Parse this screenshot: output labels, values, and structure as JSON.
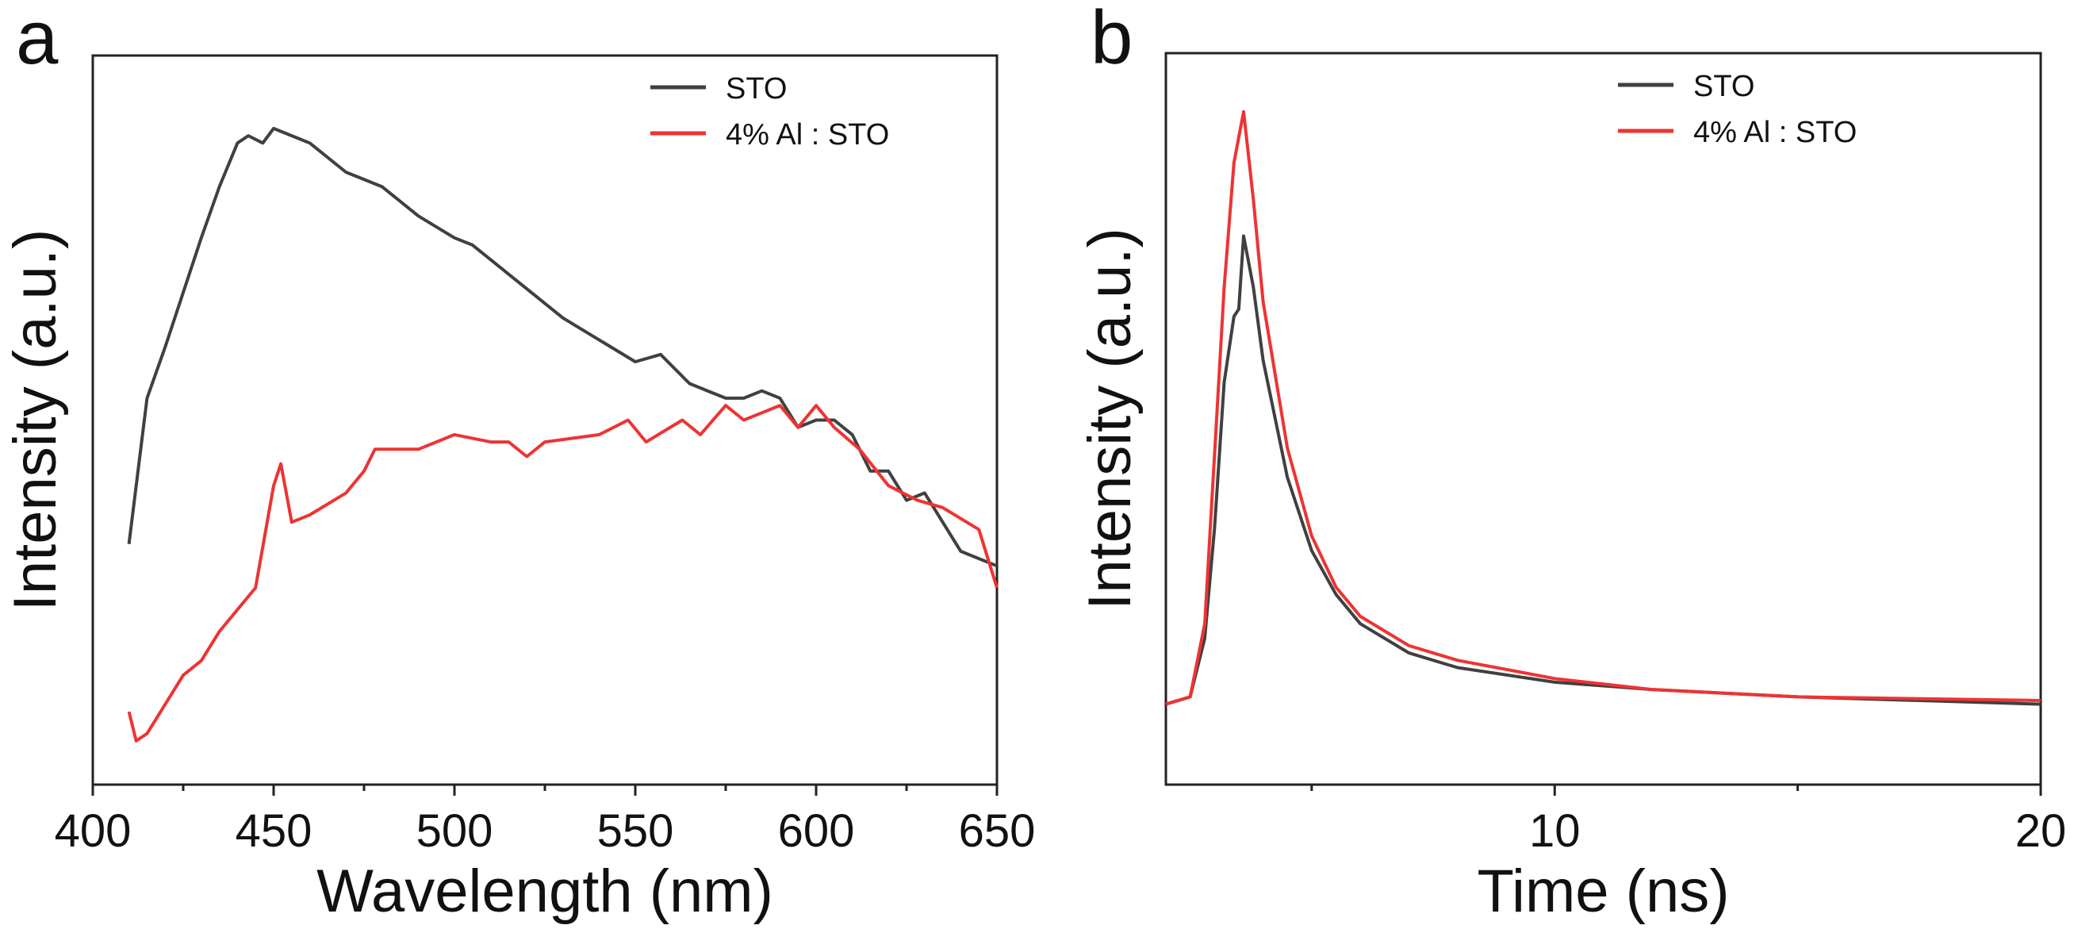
{
  "chart_data": [
    {
      "panel_label": "a",
      "type": "line",
      "xlabel": "Wavelength (nm)",
      "ylabel": "Intensity (a.u.)",
      "xlim": [
        400,
        650
      ],
      "ylim": [
        0,
        1
      ],
      "xticks": [
        400,
        450,
        500,
        550,
        600,
        650
      ],
      "xminor": [
        425,
        475,
        525,
        575,
        625
      ],
      "yticks_shown": false,
      "grid": false,
      "legend": "top-right",
      "series": [
        {
          "name": "STO",
          "color": "#404040",
          "x": [
            410,
            415,
            420,
            430,
            435,
            440,
            443,
            447,
            450,
            455,
            460,
            470,
            480,
            490,
            500,
            505,
            510,
            520,
            530,
            540,
            550,
            557,
            565,
            575,
            580,
            585,
            590,
            595,
            600,
            605,
            610,
            615,
            620,
            625,
            630,
            640,
            645,
            650
          ],
          "y": [
            0.33,
            0.53,
            0.6,
            0.75,
            0.82,
            0.88,
            0.89,
            0.88,
            0.9,
            0.89,
            0.88,
            0.84,
            0.82,
            0.78,
            0.75,
            0.74,
            0.72,
            0.68,
            0.64,
            0.61,
            0.58,
            0.59,
            0.55,
            0.53,
            0.53,
            0.54,
            0.53,
            0.49,
            0.5,
            0.5,
            0.48,
            0.43,
            0.43,
            0.39,
            0.4,
            0.32,
            0.31,
            0.3
          ]
        },
        {
          "name": "4% Al : STO",
          "color": "#ee3333",
          "x": [
            410,
            412,
            415,
            420,
            425,
            430,
            435,
            440,
            445,
            450,
            452,
            455,
            460,
            470,
            475,
            478,
            490,
            500,
            510,
            515,
            520,
            525,
            540,
            548,
            553,
            563,
            568,
            575,
            580,
            585,
            590,
            595,
            600,
            605,
            612,
            620,
            628,
            635,
            645,
            650
          ],
          "y": [
            0.1,
            0.06,
            0.07,
            0.11,
            0.15,
            0.17,
            0.21,
            0.24,
            0.27,
            0.41,
            0.44,
            0.36,
            0.37,
            0.4,
            0.43,
            0.46,
            0.46,
            0.48,
            0.47,
            0.47,
            0.45,
            0.47,
            0.48,
            0.5,
            0.47,
            0.5,
            0.48,
            0.52,
            0.5,
            0.51,
            0.52,
            0.49,
            0.52,
            0.49,
            0.46,
            0.41,
            0.39,
            0.38,
            0.35,
            0.27
          ]
        }
      ]
    },
    {
      "panel_label": "b",
      "type": "line",
      "xlabel": "Time (ns)",
      "ylabel": "Intensity (a.u.)",
      "xlim": [
        2,
        20
      ],
      "ylim": [
        0,
        1
      ],
      "xticks": [
        10,
        20
      ],
      "xminor": [
        5,
        15
      ],
      "yticks_shown": false,
      "grid": false,
      "legend": "top-right",
      "series": [
        {
          "name": "STO",
          "color": "#404040",
          "x": [
            2,
            2.5,
            2.8,
            3.0,
            3.2,
            3.4,
            3.5,
            3.6,
            3.8,
            4.0,
            4.5,
            5,
            5.5,
            6,
            7,
            8,
            10,
            12,
            15,
            20
          ],
          "y": [
            0.11,
            0.12,
            0.2,
            0.35,
            0.55,
            0.64,
            0.65,
            0.75,
            0.68,
            0.58,
            0.42,
            0.32,
            0.26,
            0.22,
            0.18,
            0.16,
            0.14,
            0.13,
            0.12,
            0.11
          ]
        },
        {
          "name": "4% Al : STO",
          "color": "#ee3333",
          "x": [
            2,
            2.5,
            2.8,
            3.0,
            3.2,
            3.4,
            3.6,
            3.8,
            4.0,
            4.5,
            5,
            5.5,
            6,
            7,
            8,
            10,
            12,
            15,
            20
          ],
          "y": [
            0.11,
            0.12,
            0.22,
            0.45,
            0.68,
            0.85,
            0.92,
            0.8,
            0.66,
            0.46,
            0.34,
            0.27,
            0.23,
            0.19,
            0.17,
            0.145,
            0.13,
            0.12,
            0.115
          ]
        }
      ]
    }
  ]
}
